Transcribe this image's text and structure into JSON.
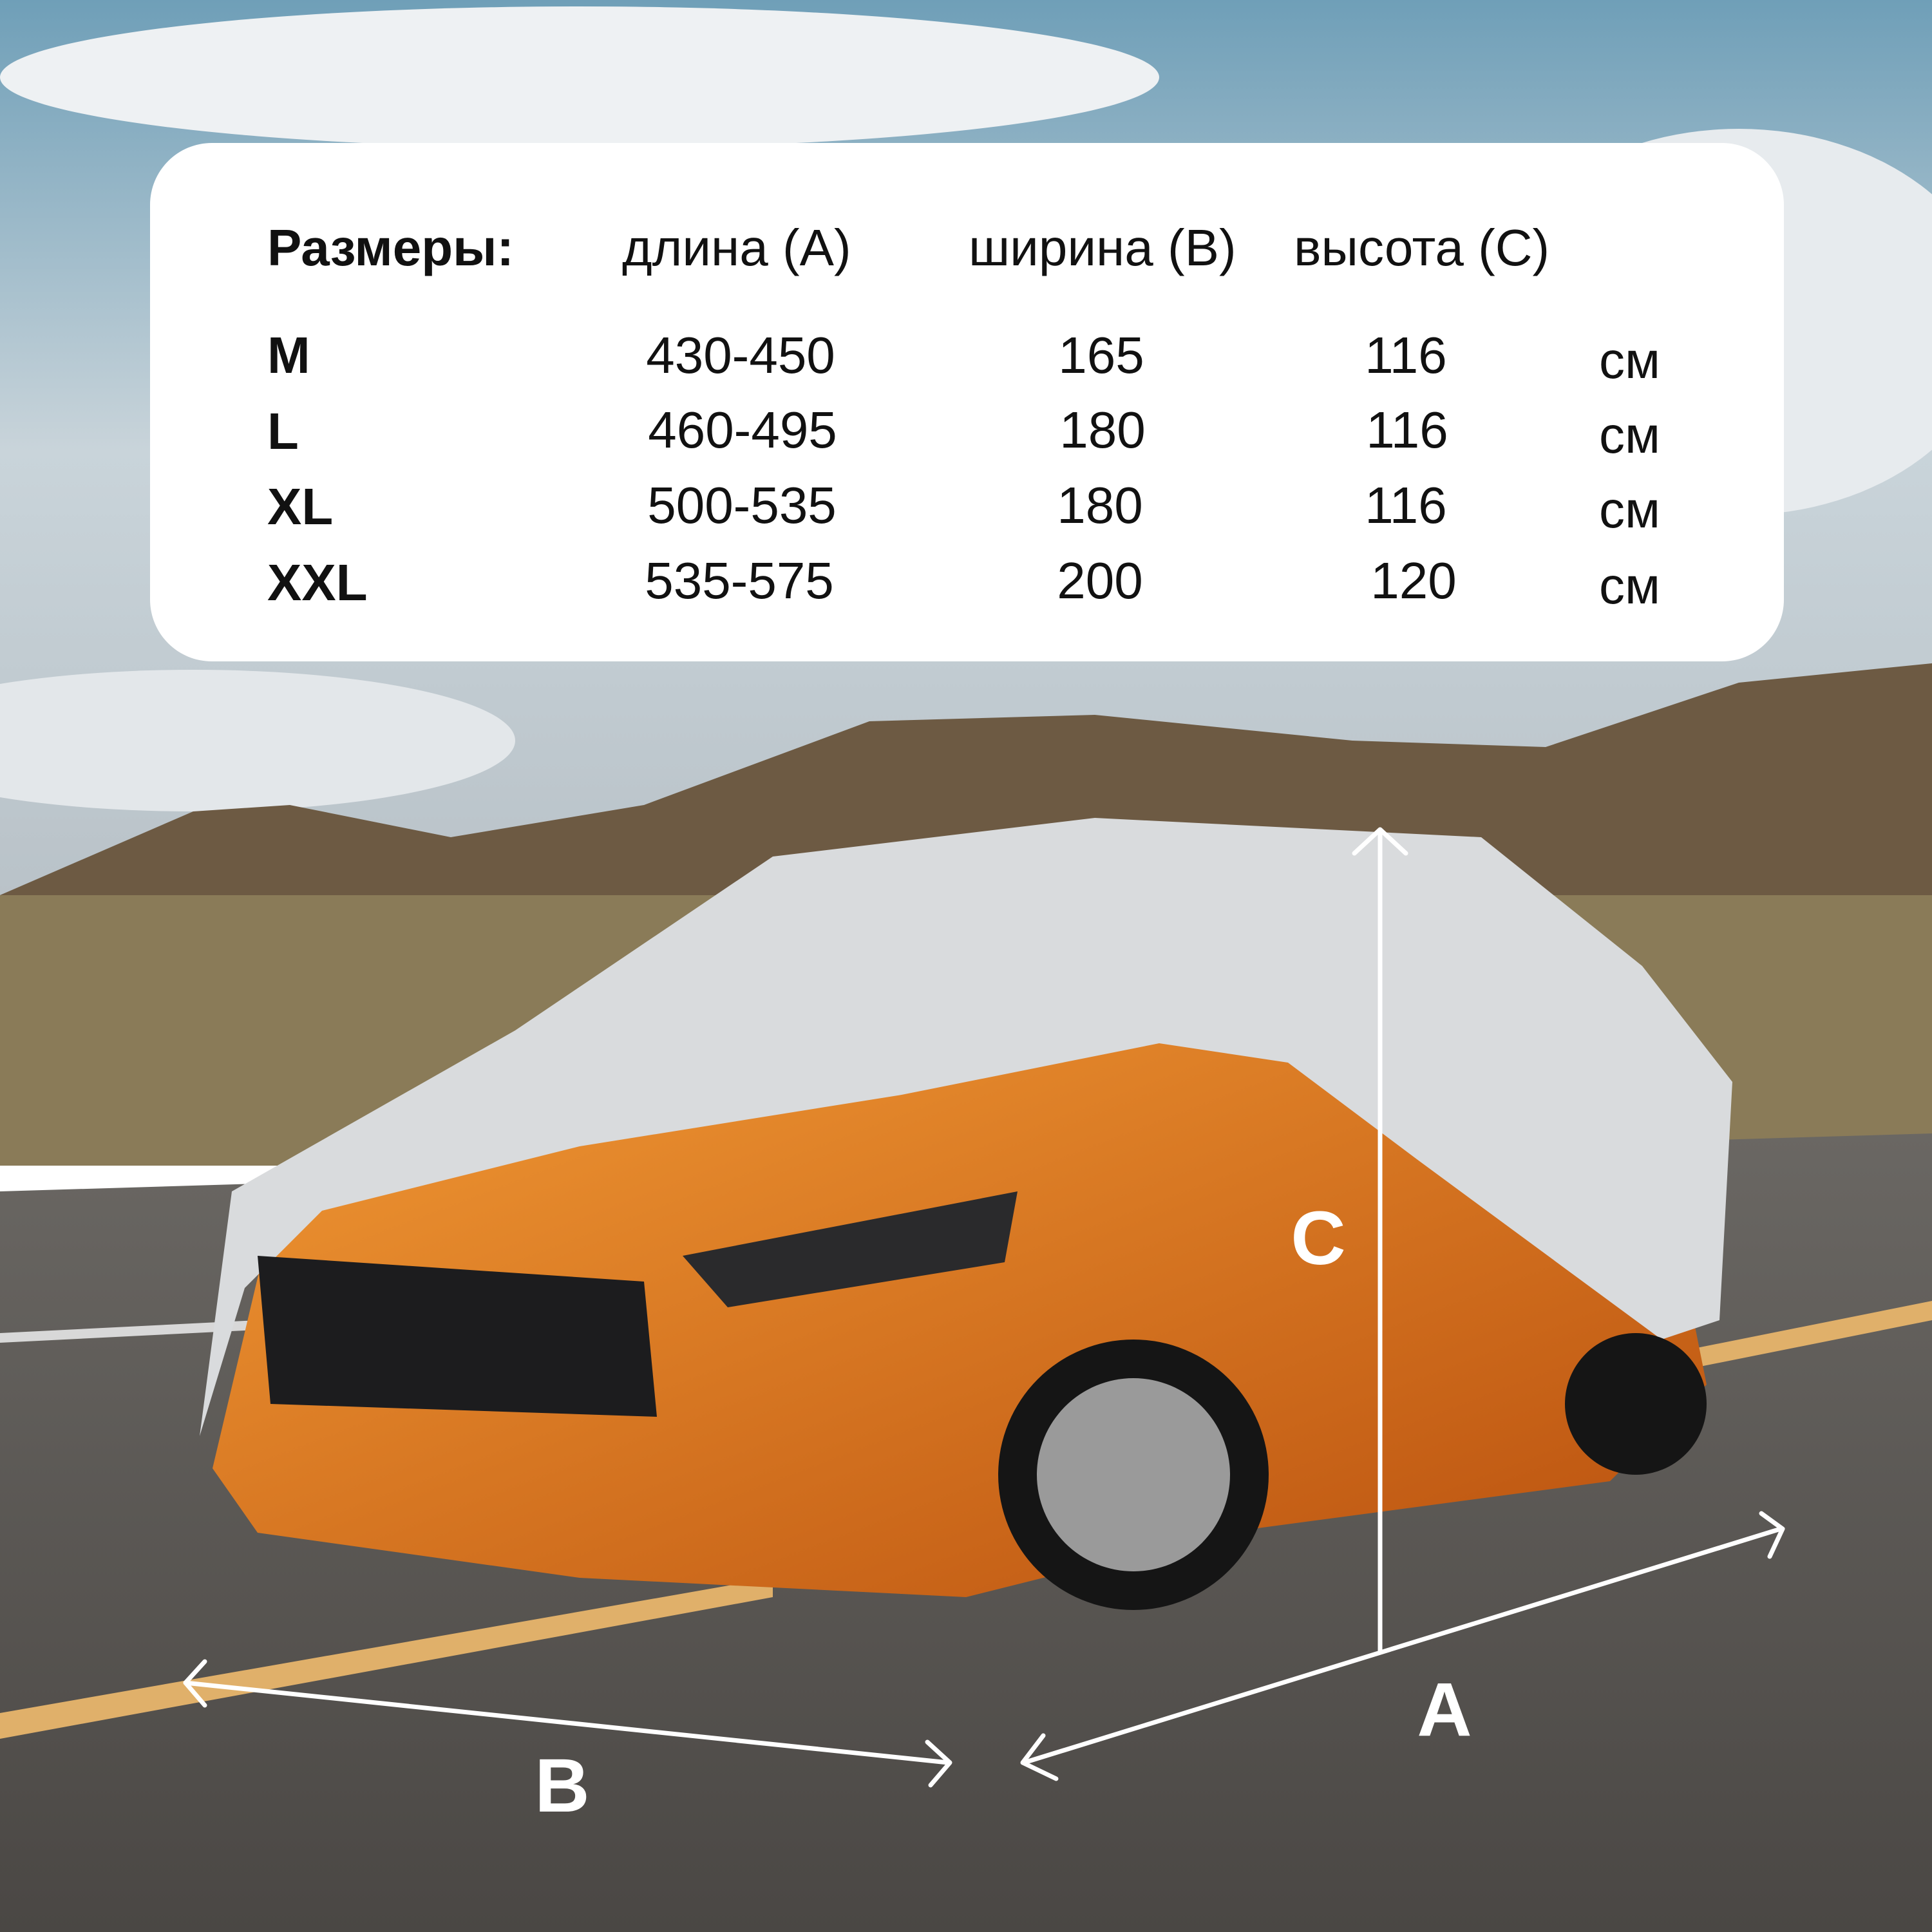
{
  "table": {
    "title": "Размеры:",
    "columns": [
      "длина (A)",
      "ширина (B)",
      "высота (C)"
    ],
    "rows": [
      {
        "size": "M",
        "length": "430-450",
        "width": "165",
        "height": "116",
        "unit": "см"
      },
      {
        "size": "L",
        "length": "460-495",
        "width": "180",
        "height": "116",
        "unit": "см"
      },
      {
        "size": "XL",
        "length": "500-535",
        "width": "180",
        "height": "116",
        "unit": "см"
      },
      {
        "size": "XXL",
        "length": "535-575",
        "width": "200",
        "height": "120",
        "unit": "см"
      }
    ]
  },
  "dimension_labels": {
    "a": "A",
    "b": "B",
    "c": "C"
  },
  "colors": {
    "car_body": "#e0781c",
    "cover": "#d9dbdd",
    "card": "#ffffff",
    "arrows": "#ffffff"
  }
}
